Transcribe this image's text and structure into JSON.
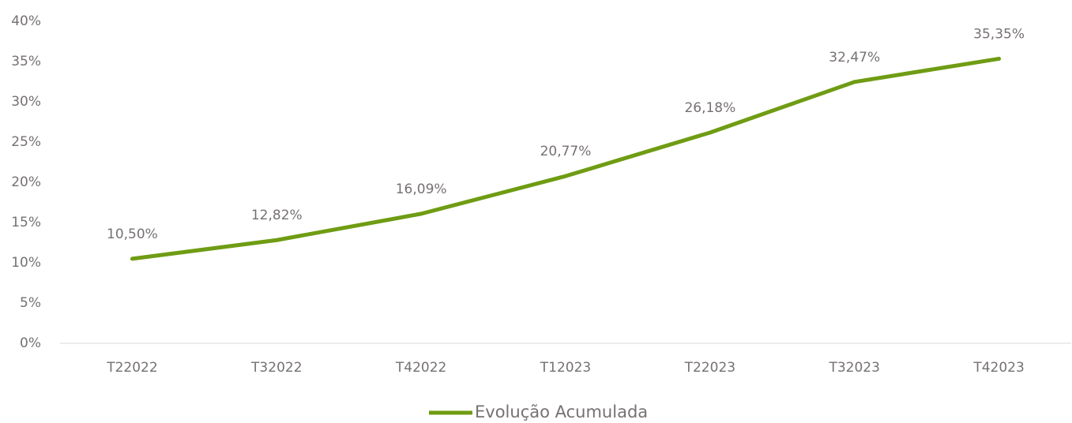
{
  "chart_data": {
    "type": "line",
    "categories": [
      "T22022",
      "T32022",
      "T42022",
      "T12023",
      "T22023",
      "T32023",
      "T42023"
    ],
    "series": [
      {
        "name": "Evolução Acumulada",
        "color": "#6f9c13",
        "values": [
          10.5,
          12.82,
          16.09,
          20.77,
          26.18,
          32.47,
          35.35
        ],
        "value_labels": [
          "10,50%",
          "12,82%",
          "16,09%",
          "20,77%",
          "26,18%",
          "32,47%",
          "35,35%"
        ]
      }
    ],
    "ylim": [
      0,
      40
    ],
    "yticks": [
      {
        "value": 0,
        "label": "0%"
      },
      {
        "value": 5,
        "label": "5%"
      },
      {
        "value": 10,
        "label": "10%"
      },
      {
        "value": 15,
        "label": "15%"
      },
      {
        "value": 20,
        "label": "20%"
      },
      {
        "value": 25,
        "label": "25%"
      },
      {
        "value": 30,
        "label": "30%"
      },
      {
        "value": 35,
        "label": "35%"
      },
      {
        "value": 40,
        "label": "40%"
      }
    ],
    "grid": false,
    "legend": "bottom"
  }
}
